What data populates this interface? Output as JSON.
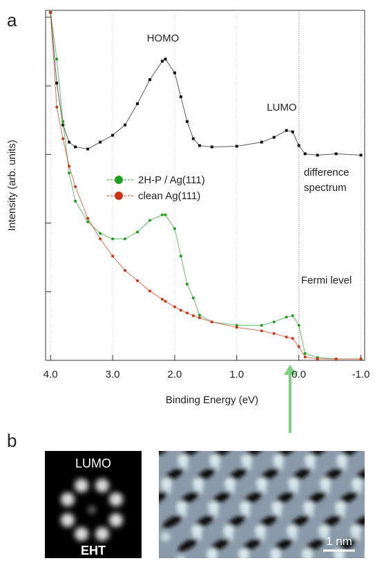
{
  "chart_data": {
    "type": "line",
    "xlabel": "Binding Energy (eV)",
    "ylabel": "Intensity (arb. units)",
    "x": [
      4.0,
      3.9,
      3.8,
      3.7,
      3.6,
      3.4,
      3.2,
      3.0,
      2.8,
      2.6,
      2.4,
      2.2,
      2.15,
      2.0,
      1.9,
      1.8,
      1.7,
      1.6,
      1.4,
      1.0,
      0.6,
      0.4,
      0.2,
      0.1,
      0.0,
      -0.1,
      -0.3,
      -0.6,
      -1.0
    ],
    "series": [
      {
        "name": "difference spectrum",
        "color": "#111111",
        "marker": "square",
        "values": [
          5.07,
          4.04,
          3.43,
          3.18,
          3.11,
          3.08,
          3.18,
          3.28,
          3.43,
          3.74,
          4.09,
          4.36,
          4.39,
          4.19,
          3.84,
          3.48,
          3.23,
          3.13,
          3.11,
          3.12,
          3.18,
          3.25,
          3.35,
          3.33,
          3.13,
          3.01,
          2.99,
          3.01,
          2.99
        ]
      },
      {
        "name": "2H-P / Ag(111)",
        "color": "#1e9e1e",
        "marker": "circle",
        "values": [
          5.07,
          4.39,
          3.48,
          2.73,
          2.32,
          2.02,
          1.85,
          1.77,
          1.77,
          1.87,
          2.04,
          2.12,
          2.12,
          1.92,
          1.52,
          1.11,
          0.91,
          0.66,
          0.56,
          0.51,
          0.51,
          0.56,
          0.63,
          0.65,
          0.51,
          0.1,
          0.04,
          0.02,
          0.02
        ]
      },
      {
        "name": "clean Ag(111)",
        "color": "#cc3311",
        "marker": "circle",
        "values": [
          5.07,
          3.69,
          3.23,
          2.83,
          2.53,
          2.07,
          1.77,
          1.52,
          1.31,
          1.16,
          1.01,
          0.89,
          0.86,
          0.78,
          0.73,
          0.69,
          0.65,
          0.62,
          0.56,
          0.48,
          0.43,
          0.39,
          0.34,
          0.32,
          0.2,
          0.05,
          0.02,
          0.02,
          0.02
        ]
      }
    ],
    "legend_series": [
      1,
      2
    ],
    "xlim": [
      4.08,
      -1.06
    ],
    "ylim": [
      0,
      5.1
    ],
    "xticks": [
      {
        "value": 4.0,
        "label": "4.0"
      },
      {
        "value": 3.0,
        "label": "3.0"
      },
      {
        "value": 2.0,
        "label": "2.0"
      },
      {
        "value": 1.0,
        "label": "1.0"
      },
      {
        "value": 0.0,
        "label": "0.0"
      },
      {
        "value": -1.0,
        "label": "-1.0"
      }
    ],
    "yticks": [
      0,
      1,
      2,
      3,
      4,
      5
    ],
    "grid": true,
    "annotations": [
      {
        "text": "HOMO"
      },
      {
        "text": "LUMO"
      },
      {
        "text": "Fermi level"
      }
    ]
  },
  "panel_labels": [
    "a",
    "b"
  ],
  "images": {
    "simulation_title": "LUMO",
    "simulation_method": "EHT",
    "scale_bar": "1 nm"
  }
}
